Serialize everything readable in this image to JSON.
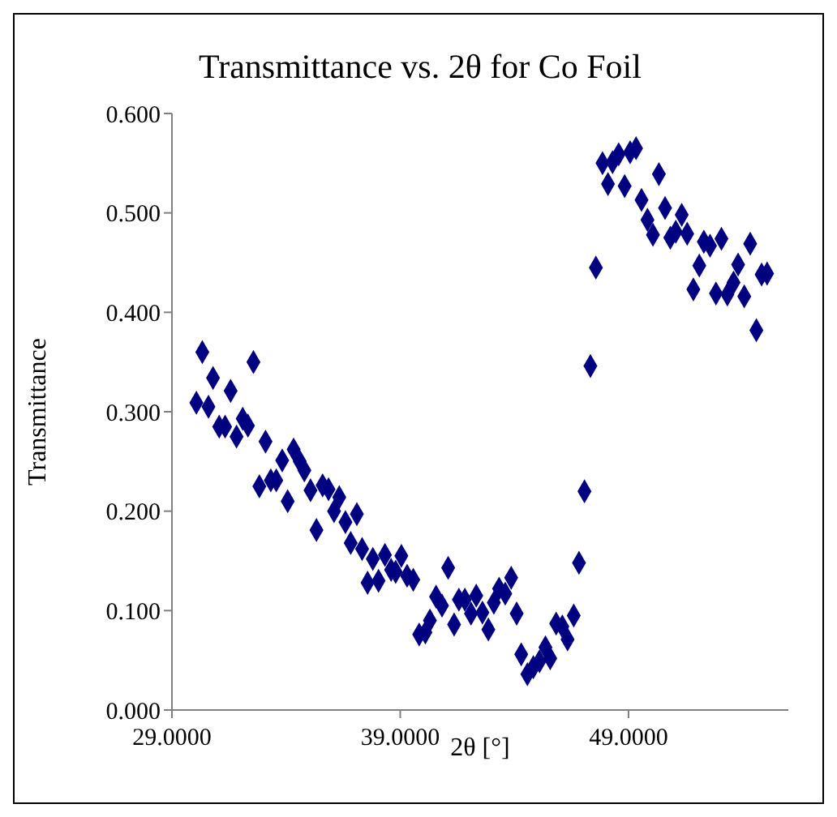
{
  "chart_data": {
    "type": "scatter",
    "title": "Transmittance vs. 2θ for Co Foil",
    "xlabel": "2θ [°]",
    "ylabel": "Transmittance",
    "x": [
      30.07,
      30.33,
      30.6,
      30.8,
      31.07,
      31.33,
      31.57,
      31.83,
      32.1,
      32.33,
      32.57,
      32.83,
      33.1,
      33.33,
      33.57,
      33.83,
      34.07,
      34.33,
      34.6,
      34.8,
      35.07,
      35.33,
      35.6,
      35.86,
      36.1,
      36.33,
      36.6,
      36.83,
      37.1,
      37.33,
      37.57,
      37.8,
      38.05,
      38.33,
      38.6,
      38.8,
      39.05,
      39.3,
      39.57,
      39.83,
      40.1,
      40.3,
      40.57,
      40.83,
      41.1,
      41.36,
      41.57,
      41.83,
      42.1,
      42.33,
      42.6,
      42.86,
      43.1,
      43.33,
      43.6,
      43.86,
      44.1,
      44.3,
      44.57,
      44.83,
      45.1,
      45.36,
      45.57,
      45.83,
      46.1,
      46.33,
      46.6,
      46.83,
      47.07,
      47.33,
      47.57,
      47.86,
      48.1,
      48.3,
      48.57,
      48.83,
      49.07,
      49.33,
      49.57,
      49.83,
      50.07,
      50.33,
      50.6,
      50.83,
      51.07,
      51.33,
      51.57,
      51.84,
      52.1,
      52.3,
      52.57,
      52.83,
      53.07,
      53.33,
      53.6,
      53.8,
      54.07,
      54.33,
      54.6,
      54.83,
      55.07
    ],
    "series": [
      {
        "color": "#000080",
        "values": [
          0.309,
          0.36,
          0.305,
          0.334,
          0.285,
          0.285,
          0.321,
          0.275,
          0.293,
          0.286,
          0.35,
          0.225,
          0.27,
          0.231,
          0.231,
          0.251,
          0.21,
          0.262,
          0.25,
          0.241,
          0.221,
          0.181,
          0.226,
          0.222,
          0.2,
          0.214,
          0.189,
          0.168,
          0.197,
          0.162,
          0.128,
          0.152,
          0.13,
          0.156,
          0.141,
          0.139,
          0.155,
          0.135,
          0.131,
          0.076,
          0.078,
          0.09,
          0.114,
          0.105,
          0.143,
          0.086,
          0.111,
          0.111,
          0.097,
          0.115,
          0.098,
          0.081,
          0.108,
          0.122,
          0.117,
          0.133,
          0.097,
          0.056,
          0.036,
          0.043,
          0.049,
          0.063,
          0.052,
          0.087,
          0.084,
          0.071,
          0.095,
          0.148,
          0.22,
          0.346,
          0.445,
          0.55,
          0.529,
          0.551,
          0.559,
          0.527,
          0.561,
          0.565,
          0.513,
          0.493,
          0.478,
          0.539,
          0.505,
          0.475,
          0.481,
          0.498,
          0.479,
          0.423,
          0.447,
          0.471,
          0.467,
          0.419,
          0.474,
          0.418,
          0.43,
          0.448,
          0.416,
          0.469,
          0.382,
          0.438,
          0.439
        ]
      }
    ],
    "xlim": [
      29,
      56
    ],
    "xticks": [
      {
        "value": 29,
        "label": "29.0000"
      },
      {
        "value": 39,
        "label": "39.0000"
      },
      {
        "value": 49,
        "label": "49.0000"
      }
    ],
    "ylim": [
      0,
      0.6
    ],
    "yticks": [
      {
        "value": 0,
        "label": "0.000"
      },
      {
        "value": 0.1,
        "label": "0.100"
      },
      {
        "value": 0.2,
        "label": "0.200"
      },
      {
        "value": 0.3,
        "label": "0.300"
      },
      {
        "value": 0.4,
        "label": "0.400"
      },
      {
        "value": 0.5,
        "label": "0.500"
      },
      {
        "value": 0.6,
        "label": "0.600"
      }
    ],
    "grid": false,
    "legend": false,
    "marker": "diamond"
  }
}
